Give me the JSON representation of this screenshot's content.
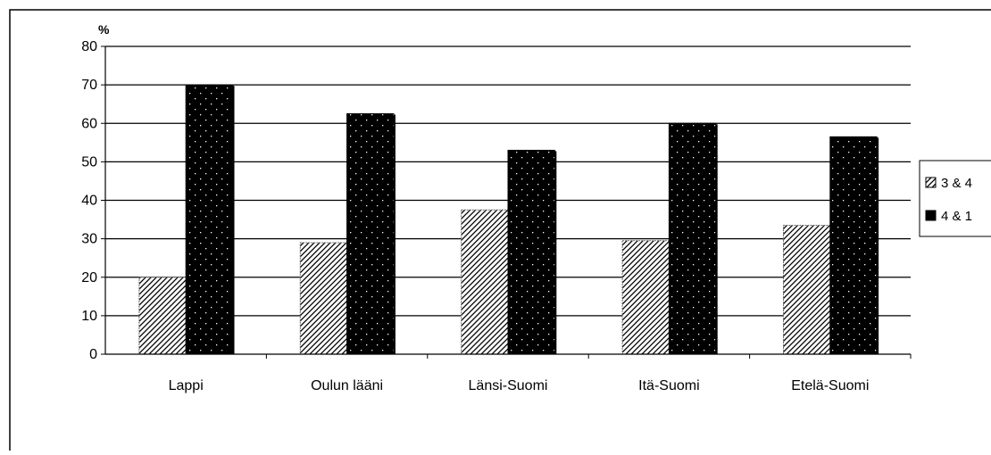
{
  "chart_data": {
    "type": "bar",
    "title": "",
    "ylabel": "%",
    "xlabel": "",
    "ylim": [
      0,
      80
    ],
    "yticks": [
      "0",
      "10",
      "20",
      "30",
      "40",
      "50",
      "60",
      "70",
      "80"
    ],
    "categories": [
      "Lappi",
      "Oulun lääni",
      "Länsi-Suomi",
      "Itä-Suomi",
      "Etelä-Suomi"
    ],
    "series": [
      {
        "name": "3 & 4",
        "values": [
          20,
          29,
          37.5,
          29.5,
          33.5
        ],
        "pattern": "hatch",
        "color": "#ffffff"
      },
      {
        "name": "4 & 1",
        "values": [
          70,
          62.5,
          53,
          60,
          56.5
        ],
        "pattern": "dots",
        "color": "#000000"
      }
    ],
    "grid": true,
    "legend_position": "right"
  }
}
